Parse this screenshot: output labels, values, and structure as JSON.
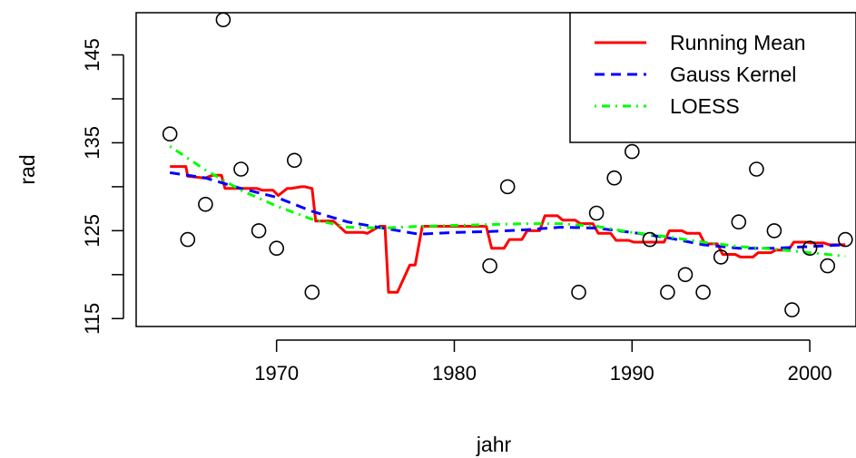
{
  "chart_data": {
    "type": "scatter",
    "xlabel": "jahr",
    "ylabel": "rad",
    "xlim": [
      1962.1,
      2002.6
    ],
    "ylim": [
      114.1,
      149.8
    ],
    "x_ticks": [
      1970,
      1980,
      1990,
      2000
    ],
    "y_ticks": [
      115,
      125,
      135,
      145
    ],
    "grid": false,
    "legend_position": "top-right",
    "points": {
      "x": [
        1964,
        1965,
        1966,
        1967,
        1968,
        1969,
        1970,
        1971,
        1972,
        1982,
        1983,
        1987,
        1988,
        1989,
        1990,
        1991,
        1992,
        1993,
        1994,
        1995,
        1996,
        1997,
        1998,
        1999,
        2000,
        2001,
        2002
      ],
      "y": [
        136,
        124,
        128,
        149,
        132,
        125,
        123,
        133,
        118,
        121,
        130,
        118,
        127,
        131,
        134,
        124,
        118,
        120,
        118,
        122,
        126,
        132,
        125,
        116,
        123,
        121,
        124
      ]
    },
    "series": [
      {
        "name": "Running Mean",
        "color": "#ff0000",
        "dash": "solid",
        "x": [
          1964,
          1964.9,
          1965,
          1965.9,
          1966,
          1966.4,
          1966.5,
          1966.9,
          1967.1,
          1968.9,
          1969.2,
          1969.8,
          1970.1,
          1970.6,
          1970.8,
          1971.4,
          1971.6,
          1972,
          1972.2,
          1972.9,
          1973.2,
          1973.9,
          1974.1,
          1974.9,
          1975.1,
          1975.8,
          1976.1,
          1976.3,
          1976.6,
          1976.8,
          1977.5,
          1977.8,
          1978.2,
          1981.8,
          1982.1,
          1982.8,
          1983.1,
          1983.8,
          1984.1,
          1984.8,
          1985.1,
          1985.8,
          1986.1,
          1986.8,
          1987.1,
          1987.8,
          1988.1,
          1988.8,
          1989.1,
          1989.8,
          1990.1,
          1990.8,
          1991.1,
          1991.8,
          1992.1,
          1992.8,
          1993.1,
          1993.8,
          1994.1,
          1994.8,
          1995.1,
          1995.8,
          1996.1,
          1996.8,
          1997.1,
          1997.8,
          1998.1,
          1998.8,
          1999.1,
          1999.8,
          2000.1,
          2000.8,
          2001.1,
          2001.8,
          2002
        ],
        "y": [
          132.3,
          132.3,
          131.2,
          131.0,
          131.0,
          131.3,
          131.3,
          131.3,
          129.8,
          129.8,
          129.6,
          129.6,
          129.0,
          129.8,
          129.8,
          130.0,
          130.0,
          129.8,
          126.1,
          126.1,
          126.1,
          124.8,
          124.8,
          124.8,
          124.7,
          125.5,
          125.5,
          118.0,
          118.0,
          118.0,
          121.1,
          121.1,
          125.5,
          125.5,
          123.0,
          123.0,
          124.0,
          124.0,
          125.0,
          125.0,
          126.7,
          126.7,
          126.2,
          126.2,
          125.8,
          125.8,
          124.7,
          124.7,
          123.9,
          123.9,
          123.7,
          123.7,
          123.7,
          123.7,
          125.0,
          125.0,
          124.7,
          124.7,
          123.5,
          123.5,
          122.3,
          122.3,
          122.0,
          122.0,
          122.5,
          122.5,
          122.8,
          122.8,
          123.7,
          123.7,
          123.6,
          123.6,
          123.4,
          123.4,
          123.4
        ]
      },
      {
        "name": "Gauss Kernel",
        "color": "#0000ff",
        "dash": "dashed",
        "x": [
          1964,
          1966,
          1968,
          1970,
          1972,
          1974,
          1976,
          1978,
          1980,
          1982,
          1984,
          1986,
          1988,
          1990,
          1992,
          1994,
          1996,
          1998,
          2000,
          2002
        ],
        "y": [
          131.6,
          131.0,
          129.8,
          128.8,
          127.2,
          126.0,
          125.3,
          124.6,
          124.8,
          124.9,
          125.1,
          125.4,
          125.3,
          124.8,
          124.2,
          123.4,
          123.0,
          123.0,
          123.2,
          123.4
        ]
      },
      {
        "name": "LOESS",
        "color": "#00ff00",
        "dash": "dotdash",
        "x": [
          1964,
          1966,
          1968,
          1970,
          1972,
          1974,
          1976,
          1978,
          1980,
          1982,
          1984,
          1986,
          1988,
          1990,
          1992,
          1994,
          1996,
          1998,
          2000,
          2002
        ],
        "y": [
          134.6,
          131.9,
          129.6,
          127.8,
          126.3,
          125.4,
          125.3,
          125.5,
          125.6,
          125.7,
          125.8,
          125.8,
          125.5,
          124.8,
          124.3,
          123.7,
          123.2,
          122.9,
          122.5,
          122.1
        ]
      }
    ]
  }
}
